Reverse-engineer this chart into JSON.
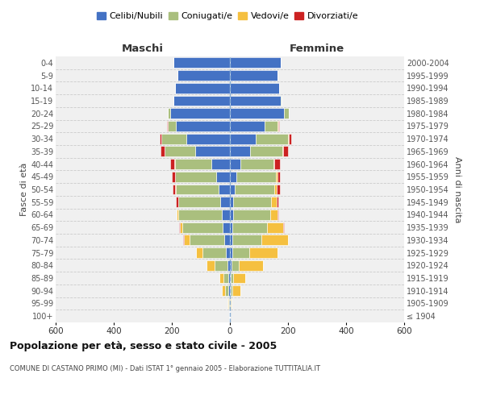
{
  "age_groups": [
    "100+",
    "95-99",
    "90-94",
    "85-89",
    "80-84",
    "75-79",
    "70-74",
    "65-69",
    "60-64",
    "55-59",
    "50-54",
    "45-49",
    "40-44",
    "35-39",
    "30-34",
    "25-29",
    "20-24",
    "15-19",
    "10-14",
    "5-9",
    "0-4"
  ],
  "birth_years": [
    "≤ 1904",
    "1905-1909",
    "1910-1914",
    "1915-1919",
    "1920-1924",
    "1925-1929",
    "1930-1934",
    "1935-1939",
    "1940-1944",
    "1945-1949",
    "1950-1954",
    "1955-1959",
    "1960-1964",
    "1965-1969",
    "1970-1974",
    "1975-1979",
    "1980-1984",
    "1985-1989",
    "1990-1994",
    "1995-1999",
    "2000-2004"
  ],
  "maschi": {
    "celibi": [
      2,
      2,
      5,
      5,
      8,
      15,
      20,
      25,
      28,
      32,
      38,
      48,
      65,
      120,
      150,
      185,
      205,
      195,
      190,
      180,
      195
    ],
    "coniugati": [
      0,
      3,
      12,
      18,
      45,
      80,
      120,
      140,
      150,
      145,
      148,
      140,
      125,
      105,
      85,
      28,
      8,
      0,
      0,
      0,
      0
    ],
    "vedovi": [
      0,
      2,
      10,
      14,
      28,
      22,
      18,
      8,
      4,
      2,
      2,
      2,
      1,
      1,
      1,
      1,
      0,
      0,
      0,
      0,
      0
    ],
    "divorziati": [
      0,
      0,
      0,
      0,
      0,
      0,
      2,
      2,
      2,
      8,
      9,
      9,
      14,
      14,
      5,
      2,
      0,
      0,
      0,
      0,
      0
    ]
  },
  "femmine": {
    "nubili": [
      1,
      1,
      3,
      4,
      5,
      8,
      8,
      8,
      10,
      12,
      18,
      22,
      35,
      70,
      90,
      120,
      185,
      175,
      170,
      165,
      175
    ],
    "coniugate": [
      0,
      1,
      4,
      8,
      25,
      60,
      100,
      120,
      130,
      130,
      135,
      135,
      115,
      110,
      110,
      45,
      18,
      2,
      0,
      0,
      0
    ],
    "vedove": [
      0,
      3,
      28,
      42,
      85,
      95,
      92,
      55,
      25,
      18,
      9,
      7,
      4,
      2,
      2,
      2,
      1,
      0,
      0,
      0,
      0
    ],
    "divorziate": [
      0,
      0,
      0,
      0,
      0,
      0,
      0,
      2,
      2,
      7,
      9,
      9,
      18,
      18,
      9,
      2,
      0,
      0,
      0,
      0,
      0
    ]
  },
  "colors": {
    "celibi": "#4472C4",
    "coniugati": "#AABF7E",
    "vedovi": "#F5C040",
    "divorziati": "#CC2222"
  },
  "xlim": 600,
  "title": "Popolazione per età, sesso e stato civile - 2005",
  "subtitle": "COMUNE DI CASTANO PRIMO (MI) - Dati ISTAT 1° gennaio 2005 - Elaborazione TUTTITALIA.IT",
  "ylabel_left": "Fasce di età",
  "ylabel_right": "Anni di nascita",
  "header_maschi": "Maschi",
  "header_femmine": "Femmine",
  "legend_labels": [
    "Celibi/Nubili",
    "Coniugati/e",
    "Vedovi/e",
    "Divorziati/e"
  ],
  "bg_color": "#FFFFFF",
  "grid_color": "#CCCCCC",
  "ax_bg_color": "#F0F0F0"
}
